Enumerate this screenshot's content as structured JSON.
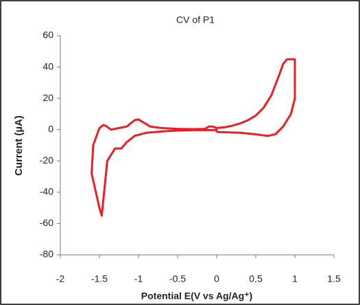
{
  "chart_data": {
    "type": "line",
    "title": "CV of P1",
    "xlabel": "Potential E(V vs Ag/Ag⁺)",
    "ylabel": "Current (µA)",
    "color": "#ee1c25",
    "x": [
      0,
      0.3,
      0.5,
      0.65,
      0.75,
      0.85,
      0.95,
      1.0,
      1.0,
      0.9,
      0.85,
      0.8,
      0.7,
      0.6,
      0.5,
      0.4,
      0.3,
      0.2,
      0.1,
      0,
      -0.05,
      -0.1,
      -0.15,
      -0.3,
      -0.5,
      -0.7,
      -0.85,
      -0.95,
      -1.0,
      -1.05,
      -1.15,
      -1.25,
      -1.35,
      -1.42,
      -1.45,
      -1.5,
      -1.58,
      -1.6,
      -1.5,
      -1.47,
      -1.45,
      -1.4,
      -1.3,
      -1.22,
      -1.15,
      -1.05,
      -0.9,
      -0.6,
      -0.3,
      0,
      0
    ],
    "values": [
      -1.5,
      -2,
      -3,
      -4,
      -3,
      2,
      10,
      20,
      45,
      45,
      42,
      35,
      22,
      14,
      9,
      6,
      4,
      2.5,
      1.5,
      1,
      2,
      2,
      0.5,
      0.3,
      0.5,
      1,
      2,
      5,
      6.5,
      6,
      2,
      1,
      0,
      2.5,
      3,
      1,
      -10,
      -28,
      -50,
      -55,
      -45,
      -20,
      -12,
      -12,
      -8,
      -4,
      -2,
      -0.8,
      -0.3,
      -0.2,
      -1.5
    ],
    "xlim": [
      -2,
      1.5
    ],
    "xticks": [
      -2,
      -1.5,
      -1,
      -0.5,
      0,
      0.5,
      1,
      1.5
    ],
    "ylim": [
      -80,
      60
    ],
    "yticks": [
      -80,
      -60,
      -40,
      -20,
      0,
      20,
      40,
      60
    ],
    "grid": false
  }
}
